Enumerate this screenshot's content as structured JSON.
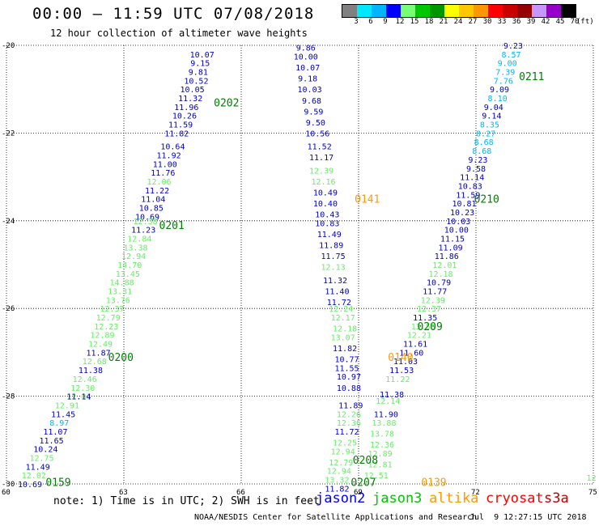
{
  "title": "00:00 – 11:59 UTC 07/08/2018",
  "subtitle": "12 hour collection of altimeter wave heights",
  "color_scale": {
    "labels": [
      "3",
      "6",
      "9",
      "12",
      "15",
      "18",
      "21",
      "24",
      "27",
      "30",
      "33",
      "36",
      "39",
      "42",
      "45",
      "70"
    ],
    "unit": "(ft)",
    "colors": [
      "#808080",
      "#00e8ff",
      "#00b4ff",
      "#0000ff",
      "#78ff78",
      "#00c800",
      "#009600",
      "#ffff00",
      "#ffc800",
      "#ff9600",
      "#ff0000",
      "#c80000",
      "#960000",
      "#c896ff",
      "#9600c8",
      "#000000"
    ]
  },
  "map": {
    "lat_range": [
      -30,
      -20
    ],
    "lon_range": [
      60,
      75
    ],
    "lat_ticks": [
      "-20",
      "-22",
      "-24",
      "-26",
      "-28",
      "-30"
    ],
    "lon_ticks": [
      "60",
      "63",
      "66",
      "69",
      "72",
      "75"
    ]
  },
  "track_colors": {
    "dark": "#0000c8",
    "light": "#00b4ff",
    "lgreen": "#66ee66",
    "orange": "#ff9900",
    "green": "#008000"
  },
  "swh": [
    {
      "v": "10.07",
      "c": "dark",
      "lat": -20.2,
      "lon": 65.0
    },
    {
      "v": "9.15",
      "c": "dark",
      "lat": -20.4,
      "lon": 64.95
    },
    {
      "v": "9.81",
      "c": "dark",
      "lat": -20.6,
      "lon": 64.9
    },
    {
      "v": "10.52",
      "c": "dark",
      "lat": -20.8,
      "lon": 64.85
    },
    {
      "v": "10.05",
      "c": "dark",
      "lat": -21.0,
      "lon": 64.75
    },
    {
      "v": "11.32",
      "c": "dark",
      "lat": -21.2,
      "lon": 64.7
    },
    {
      "v": "11.96",
      "c": "dark",
      "lat": -21.4,
      "lon": 64.6
    },
    {
      "v": "10.26",
      "c": "dark",
      "lat": -21.6,
      "lon": 64.55
    },
    {
      "v": "11.59",
      "c": "dark",
      "lat": -21.8,
      "lon": 64.45
    },
    {
      "v": "11.82",
      "c": "dark",
      "lat": -22.0,
      "lon": 64.35
    },
    {
      "v": "10.64",
      "c": "dark",
      "lat": -22.3,
      "lon": 64.25
    },
    {
      "v": "11.92",
      "c": "dark",
      "lat": -22.5,
      "lon": 64.15
    },
    {
      "v": "11.00",
      "c": "dark",
      "lat": -22.7,
      "lon": 64.05
    },
    {
      "v": "11.76",
      "c": "dark",
      "lat": -22.9,
      "lon": 64.0
    },
    {
      "v": "12.06",
      "c": "lgreen",
      "lat": -23.1,
      "lon": 63.9
    },
    {
      "v": "11.22",
      "c": "dark",
      "lat": -23.3,
      "lon": 63.85
    },
    {
      "v": "11.04",
      "c": "dark",
      "lat": -23.5,
      "lon": 63.75
    },
    {
      "v": "10.85",
      "c": "dark",
      "lat": -23.7,
      "lon": 63.7
    },
    {
      "v": "10.69",
      "c": "dark",
      "lat": -23.9,
      "lon": 63.6
    },
    {
      "v": "12.38",
      "c": "lgreen",
      "lat": -24.0,
      "lon": 63.55
    },
    {
      "v": "11.23",
      "c": "dark",
      "lat": -24.2,
      "lon": 63.5
    },
    {
      "v": "12.84",
      "c": "lgreen",
      "lat": -24.4,
      "lon": 63.4
    },
    {
      "v": "13.38",
      "c": "lgreen",
      "lat": -24.6,
      "lon": 63.3
    },
    {
      "v": "12.94",
      "c": "lgreen",
      "lat": -24.8,
      "lon": 63.25
    },
    {
      "v": "14.70",
      "c": "lgreen",
      "lat": -25.0,
      "lon": 63.15
    },
    {
      "v": "13.45",
      "c": "lgreen",
      "lat": -25.2,
      "lon": 63.1
    },
    {
      "v": "14.88",
      "c": "lgreen",
      "lat": -25.4,
      "lon": 62.95
    },
    {
      "v": "13.31",
      "c": "lgreen",
      "lat": -25.6,
      "lon": 62.9
    },
    {
      "v": "13.76",
      "c": "lgreen",
      "lat": -25.8,
      "lon": 62.85
    },
    {
      "v": "12.37",
      "c": "lgreen",
      "lat": -26.0,
      "lon": 62.7
    },
    {
      "v": "12.79",
      "c": "lgreen",
      "lat": -26.2,
      "lon": 62.6
    },
    {
      "v": "12.23",
      "c": "lgreen",
      "lat": -26.4,
      "lon": 62.55
    },
    {
      "v": "12.89",
      "c": "lgreen",
      "lat": -26.6,
      "lon": 62.45
    },
    {
      "v": "12.49",
      "c": "lgreen",
      "lat": -26.8,
      "lon": 62.4
    },
    {
      "v": "11.87",
      "c": "dark",
      "lat": -27.0,
      "lon": 62.35
    },
    {
      "v": "12.68",
      "c": "lgreen",
      "lat": -27.2,
      "lon": 62.25
    },
    {
      "v": "11.38",
      "c": "dark",
      "lat": -27.4,
      "lon": 62.15
    },
    {
      "v": "12.46",
      "c": "lgreen",
      "lat": -27.6,
      "lon": 62.0
    },
    {
      "v": "12.30",
      "c": "lgreen",
      "lat": -27.8,
      "lon": 61.95
    },
    {
      "v": "12.01",
      "c": "lgreen",
      "lat": -28.0,
      "lon": 61.85
    },
    {
      "v": "11.14",
      "c": "dark",
      "lat": -28.0,
      "lon": 61.85
    },
    {
      "v": "12.91",
      "c": "lgreen",
      "lat": -28.2,
      "lon": 61.55
    },
    {
      "v": "11.45",
      "c": "dark",
      "lat": -28.4,
      "lon": 61.45
    },
    {
      "v": "8.97",
      "c": "light",
      "lat": -28.6,
      "lon": 61.35
    },
    {
      "v": "11.07",
      "c": "dark",
      "lat": -28.8,
      "lon": 61.25
    },
    {
      "v": "11.65",
      "c": "dark",
      "lat": -29.0,
      "lon": 61.15
    },
    {
      "v": "10.24",
      "c": "dark",
      "lat": -29.2,
      "lon": 61.0
    },
    {
      "v": "12.75",
      "c": "lgreen",
      "lat": -29.4,
      "lon": 60.9
    },
    {
      "v": "11.49",
      "c": "dark",
      "lat": -29.6,
      "lon": 60.8
    },
    {
      "v": "12.02",
      "c": "lgreen",
      "lat": -29.8,
      "lon": 60.7
    },
    {
      "v": "10.69",
      "c": "dark",
      "lat": -30.0,
      "lon": 60.6
    },
    {
      "v": "9.86",
      "c": "dark",
      "lat": -20.05,
      "lon": 67.65
    },
    {
      "v": "10.00",
      "c": "dark",
      "lat": -20.25,
      "lon": 67.65
    },
    {
      "v": "10.07",
      "c": "dark",
      "lat": -20.5,
      "lon": 67.7
    },
    {
      "v": "9.18",
      "c": "dark",
      "lat": -20.75,
      "lon": 67.7
    },
    {
      "v": "10.03",
      "c": "dark",
      "lat": -21.0,
      "lon": 67.75
    },
    {
      "v": "9.68",
      "c": "dark",
      "lat": -21.25,
      "lon": 67.8
    },
    {
      "v": "9.59",
      "c": "dark",
      "lat": -21.5,
      "lon": 67.85
    },
    {
      "v": "9.50",
      "c": "dark",
      "lat": -21.75,
      "lon": 67.9
    },
    {
      "v": "10.56",
      "c": "dark",
      "lat": -22.0,
      "lon": 67.95
    },
    {
      "v": "11.52",
      "c": "dark",
      "lat": -22.3,
      "lon": 68.0
    },
    {
      "v": "11.17",
      "c": "dark",
      "lat": -22.55,
      "lon": 68.05
    },
    {
      "v": "12.39",
      "c": "lgreen",
      "lat": -22.85,
      "lon": 68.05
    },
    {
      "v": "12.16",
      "c": "lgreen",
      "lat": -23.1,
      "lon": 68.1
    },
    {
      "v": "10.49",
      "c": "dark",
      "lat": -23.35,
      "lon": 68.15
    },
    {
      "v": "10.40",
      "c": "dark",
      "lat": -23.6,
      "lon": 68.15
    },
    {
      "v": "10.43",
      "c": "dark",
      "lat": -23.85,
      "lon": 68.2
    },
    {
      "v": "10.83",
      "c": "dark",
      "lat": -24.05,
      "lon": 68.2
    },
    {
      "v": "11.49",
      "c": "dark",
      "lat": -24.3,
      "lon": 68.25
    },
    {
      "v": "11.89",
      "c": "dark",
      "lat": -24.55,
      "lon": 68.3
    },
    {
      "v": "11.75",
      "c": "dark",
      "lat": -24.8,
      "lon": 68.35
    },
    {
      "v": "12.13",
      "c": "lgreen",
      "lat": -25.05,
      "lon": 68.35
    },
    {
      "v": "11.32",
      "c": "dark",
      "lat": -25.35,
      "lon": 68.4
    },
    {
      "v": "11.40",
      "c": "dark",
      "lat": -25.6,
      "lon": 68.45
    },
    {
      "v": "11.72",
      "c": "dark",
      "lat": -25.85,
      "lon": 68.5
    },
    {
      "v": "12.24",
      "c": "lgreen",
      "lat": -26.0,
      "lon": 68.55
    },
    {
      "v": "12.17",
      "c": "lgreen",
      "lat": -26.2,
      "lon": 68.6
    },
    {
      "v": "12.18",
      "c": "lgreen",
      "lat": -26.45,
      "lon": 68.65
    },
    {
      "v": "13.07",
      "c": "lgreen",
      "lat": -26.65,
      "lon": 68.6
    },
    {
      "v": "11.82",
      "c": "dark",
      "lat": -26.9,
      "lon": 68.65
    },
    {
      "v": "10.77",
      "c": "dark",
      "lat": -27.15,
      "lon": 68.7
    },
    {
      "v": "11.55",
      "c": "dark",
      "lat": -27.35,
      "lon": 68.7
    },
    {
      "v": "10.97",
      "c": "dark",
      "lat": -27.55,
      "lon": 68.75
    },
    {
      "v": "10.88",
      "c": "dark",
      "lat": -27.8,
      "lon": 68.75
    },
    {
      "v": "11.89",
      "c": "dark",
      "lat": -28.2,
      "lon": 68.8
    },
    {
      "v": "12.26",
      "c": "lgreen",
      "lat": -28.4,
      "lon": 68.75
    },
    {
      "v": "12.36",
      "c": "lgreen",
      "lat": -28.6,
      "lon": 68.75
    },
    {
      "v": "11.72",
      "c": "dark",
      "lat": -28.8,
      "lon": 68.7
    },
    {
      "v": "12.25",
      "c": "lgreen",
      "lat": -29.05,
      "lon": 68.65
    },
    {
      "v": "12.94",
      "c": "lgreen",
      "lat": -29.25,
      "lon": 68.6
    },
    {
      "v": "12.79",
      "c": "lgreen",
      "lat": -29.5,
      "lon": 68.55
    },
    {
      "v": "12.94",
      "c": "lgreen",
      "lat": -29.7,
      "lon": 68.5
    },
    {
      "v": "13.32",
      "c": "lgreen",
      "lat": -29.9,
      "lon": 68.45
    },
    {
      "v": "11.82",
      "c": "dark",
      "lat": -30.1,
      "lon": 68.45
    },
    {
      "v": "9.23",
      "c": "dark",
      "lat": -20.0,
      "lon": 72.95
    },
    {
      "v": "8.57",
      "c": "light",
      "lat": -20.2,
      "lon": 72.9
    },
    {
      "v": "9.00",
      "c": "light",
      "lat": -20.4,
      "lon": 72.8
    },
    {
      "v": "7.39",
      "c": "light",
      "lat": -20.6,
      "lon": 72.75
    },
    {
      "v": "7.76",
      "c": "light",
      "lat": -20.8,
      "lon": 72.7
    },
    {
      "v": "9.09",
      "c": "dark",
      "lat": -21.0,
      "lon": 72.6
    },
    {
      "v": "8.10",
      "c": "light",
      "lat": -21.2,
      "lon": 72.55
    },
    {
      "v": "9.04",
      "c": "dark",
      "lat": -21.4,
      "lon": 72.45
    },
    {
      "v": "9.14",
      "c": "dark",
      "lat": -21.6,
      "lon": 72.4
    },
    {
      "v": "8.35",
      "c": "light",
      "lat": -21.8,
      "lon": 72.35
    },
    {
      "v": "8.27",
      "c": "light",
      "lat": -22.0,
      "lon": 72.25
    },
    {
      "v": "8.68",
      "c": "light",
      "lat": -22.2,
      "lon": 72.2
    },
    {
      "v": "8.68",
      "c": "light",
      "lat": -22.4,
      "lon": 72.15
    },
    {
      "v": "9.23",
      "c": "dark",
      "lat": -22.6,
      "lon": 72.05
    },
    {
      "v": "9.58",
      "c": "dark",
      "lat": -22.8,
      "lon": 72.0
    },
    {
      "v": "11.14",
      "c": "dark",
      "lat": -23.0,
      "lon": 71.9
    },
    {
      "v": "10.83",
      "c": "dark",
      "lat": -23.2,
      "lon": 71.85
    },
    {
      "v": "11.59",
      "c": "dark",
      "lat": -23.4,
      "lon": 71.8
    },
    {
      "v": "10.81",
      "c": "dark",
      "lat": -23.6,
      "lon": 71.7
    },
    {
      "v": "10.23",
      "c": "dark",
      "lat": -23.8,
      "lon": 71.65
    },
    {
      "v": "10.03",
      "c": "dark",
      "lat": -24.0,
      "lon": 71.55
    },
    {
      "v": "10.00",
      "c": "dark",
      "lat": -24.2,
      "lon": 71.5
    },
    {
      "v": "11.15",
      "c": "dark",
      "lat": -24.4,
      "lon": 71.4
    },
    {
      "v": "11.09",
      "c": "dark",
      "lat": -24.6,
      "lon": 71.35
    },
    {
      "v": "11.86",
      "c": "dark",
      "lat": -24.8,
      "lon": 71.25
    },
    {
      "v": "12.01",
      "c": "lgreen",
      "lat": -25.0,
      "lon": 71.2
    },
    {
      "v": "12.18",
      "c": "lgreen",
      "lat": -25.2,
      "lon": 71.1
    },
    {
      "v": "10.79",
      "c": "dark",
      "lat": -25.4,
      "lon": 71.05
    },
    {
      "v": "11.77",
      "c": "dark",
      "lat": -25.6,
      "lon": 70.95
    },
    {
      "v": "12.39",
      "c": "lgreen",
      "lat": -25.8,
      "lon": 70.9
    },
    {
      "v": "12.37",
      "c": "lgreen",
      "lat": -26.0,
      "lon": 70.8
    },
    {
      "v": "11.35",
      "c": "dark",
      "lat": -26.2,
      "lon": 70.7
    },
    {
      "v": "13.56",
      "c": "lgreen",
      "lat": -26.4,
      "lon": 70.65
    },
    {
      "v": "12.21",
      "c": "lgreen",
      "lat": -26.6,
      "lon": 70.55
    },
    {
      "v": "11.61",
      "c": "dark",
      "lat": -26.8,
      "lon": 70.45
    },
    {
      "v": "11.60",
      "c": "dark",
      "lat": -27.0,
      "lon": 70.35
    },
    {
      "v": "11.03",
      "c": "dark",
      "lat": -27.2,
      "lon": 70.2
    },
    {
      "v": "11.53",
      "c": "dark",
      "lat": -27.4,
      "lon": 70.1
    },
    {
      "v": "11.22",
      "c": "lgreen",
      "lat": -27.6,
      "lon": 70.0
    },
    {
      "v": "11.38",
      "c": "dark",
      "lat": -27.95,
      "lon": 69.85
    },
    {
      "v": "12.14",
      "c": "lgreen",
      "lat": -28.1,
      "lon": 69.75
    },
    {
      "v": "11.90",
      "c": "dark",
      "lat": -28.4,
      "lon": 69.7
    },
    {
      "v": "13.88",
      "c": "lgreen",
      "lat": -28.6,
      "lon": 69.65
    },
    {
      "v": "13.78",
      "c": "lgreen",
      "lat": -28.85,
      "lon": 69.6
    },
    {
      "v": "12.36",
      "c": "lgreen",
      "lat": -29.1,
      "lon": 69.6
    },
    {
      "v": "12.89",
      "c": "lgreen",
      "lat": -29.3,
      "lon": 69.55
    },
    {
      "v": "12.81",
      "c": "lgreen",
      "lat": -29.55,
      "lon": 69.55
    },
    {
      "v": "12.51",
      "c": "lgreen",
      "lat": -29.8,
      "lon": 69.45
    },
    {
      "v": "12",
      "c": "lgreen",
      "lat": -29.85,
      "lon": 74.95
    }
  ],
  "pass_labels": [
    {
      "t": "0202",
      "c": "green",
      "lat": -21.3,
      "lon": 65.3
    },
    {
      "t": "0201",
      "c": "green",
      "lat": -24.1,
      "lon": 63.9
    },
    {
      "t": "0200",
      "c": "green",
      "lat": -27.1,
      "lon": 62.6
    },
    {
      "t": "0159",
      "c": "green",
      "lat": -29.95,
      "lon": 61.0
    },
    {
      "t": "0141",
      "c": "orange",
      "lat": -23.5,
      "lon": 68.9
    },
    {
      "t": "0208",
      "c": "green",
      "lat": -29.45,
      "lon": 68.85
    },
    {
      "t": "0207",
      "c": "green",
      "lat": -29.95,
      "lon": 68.8
    },
    {
      "t": "0211",
      "c": "green",
      "lat": -20.7,
      "lon": 73.1
    },
    {
      "t": "0210",
      "c": "green",
      "lat": -23.5,
      "lon": 71.95
    },
    {
      "t": "0209",
      "c": "green",
      "lat": -26.4,
      "lon": 70.5
    },
    {
      "t": "0140",
      "c": "orange",
      "lat": -27.1,
      "lon": 69.75
    },
    {
      "t": "0139",
      "c": "orange",
      "lat": -29.95,
      "lon": 70.6
    }
  ],
  "note": "note: 1) Time is in UTC; 2) SWH is in feet",
  "legend": [
    {
      "label": "jason2",
      "color": "#0000ff"
    },
    {
      "label": "jason3",
      "color": "#00c800"
    },
    {
      "label": "altika",
      "color": "#ff9900"
    },
    {
      "label": "cryosat",
      "color": "#ff0000"
    },
    {
      "label": "s3a",
      "color": "#c00000"
    }
  ],
  "credit": "NOAA/NESDIS Center for Satellite Applications and Research",
  "timestamp": "Jul  9 12:27:15 UTC 2018"
}
